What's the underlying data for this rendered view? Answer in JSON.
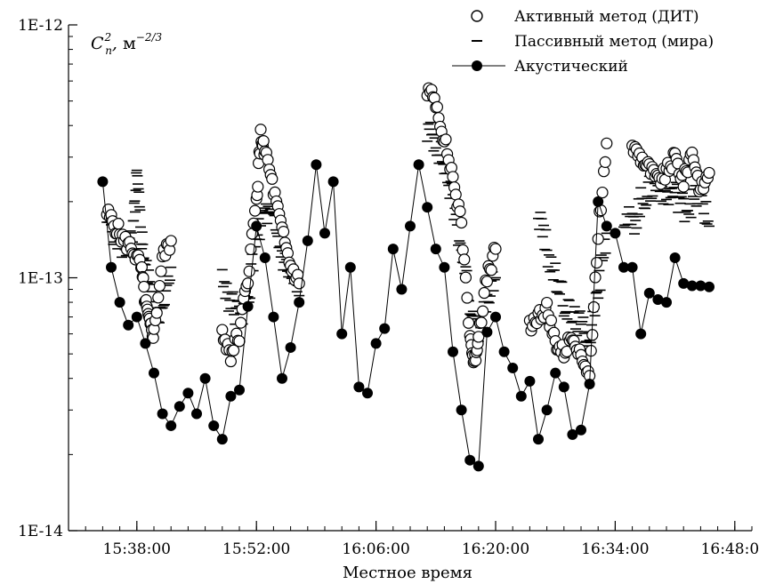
{
  "chart_data": {
    "type": "scatter",
    "title": "",
    "xlabel": "Местное время",
    "ylabel": "C_n^2, м^-2/3",
    "ylabel_parts": {
      "symbol": "C",
      "sub": "n",
      "sup": "2",
      "unit": "м",
      "unit_exp": "−2/3"
    },
    "yscale": "log",
    "ylim": [
      1e-14,
      1e-12
    ],
    "yticks": [
      "1E-12",
      "1E-13",
      "1E-14"
    ],
    "xlim": [
      "15:30:00",
      "16:50:00"
    ],
    "xticks": [
      "15:38:00",
      "15:52:00",
      "16:06:00",
      "16:20:00",
      "16:34:00",
      "16:48:00"
    ],
    "grid": false,
    "legend_position": "top-right",
    "series": [
      {
        "name": "Активный метод (ДИТ)",
        "marker": "open-circle",
        "color": "#000000",
        "segments": [
          {
            "x": [
              "15:34:30",
              "15:35:30",
              "15:36:30",
              "15:37:30",
              "15:38:30",
              "15:39:00",
              "15:39:30",
              "15:40:00",
              "15:41:00",
              "15:42:00"
            ],
            "y": [
              1.8e-13,
              1.6e-13,
              1.4e-13,
              1.3e-13,
              1.1e-13,
              8e-14,
              6.5e-14,
              6e-14,
              1.2e-13,
              1.4e-13
            ]
          },
          {
            "x": [
              "15:48:00",
              "15:49:00",
              "15:50:00",
              "15:51:00",
              "15:52:00",
              "15:52:30",
              "15:53:00",
              "15:54:00",
              "15:55:00",
              "15:56:00",
              "15:57:00"
            ],
            "y": [
              6e-14,
              5e-14,
              6e-14,
              1e-13,
              2e-13,
              3.6e-13,
              3.2e-13,
              2.2e-13,
              1.5e-13,
              1.1e-13,
              9.5e-14
            ]
          },
          {
            "x": [
              "16:12:00",
              "16:13:00",
              "16:14:00",
              "16:15:00",
              "16:16:00",
              "16:17:00",
              "16:17:30",
              "16:18:00",
              "16:19:00",
              "16:20:00"
            ],
            "y": [
              5.5e-13,
              5e-13,
              3.5e-13,
              2.5e-13,
              1.6e-13,
              6e-14,
              4.5e-14,
              6e-14,
              1e-13,
              1.3e-13
            ]
          },
          {
            "x": [
              "16:24:00",
              "16:25:00",
              "16:26:00",
              "16:27:00",
              "16:28:00",
              "16:29:00",
              "16:30:00",
              "16:31:00",
              "16:32:00",
              "16:33:00"
            ],
            "y": [
              6.5e-14,
              7e-14,
              7.5e-14,
              5.5e-14,
              5e-14,
              6e-14,
              5e-14,
              4e-14,
              1.5e-13,
              3.4e-13
            ]
          },
          {
            "x": [
              "16:36:00",
              "16:37:00",
              "16:38:00",
              "16:39:00",
              "16:40:00",
              "16:41:00",
              "16:42:00",
              "16:43:00",
              "16:44:00",
              "16:45:00"
            ],
            "y": [
              3.3e-13,
              3e-13,
              2.7e-13,
              2.4e-13,
              2.6e-13,
              3e-13,
              2.4e-13,
              3.2e-13,
              2.2e-13,
              2.6e-13
            ]
          }
        ]
      },
      {
        "name": "Пассивный метод (мира)",
        "marker": "dash",
        "color": "#000000",
        "segments": [
          {
            "x": [
              "15:34:30",
              "15:35:30",
              "15:36:30",
              "15:37:30",
              "15:38:00",
              "15:38:30",
              "15:39:00",
              "15:40:00",
              "15:41:00",
              "15:42:00"
            ],
            "y": [
              1.7e-13,
              1.5e-13,
              1.3e-13,
              1.4e-13,
              2.5e-13,
              1.5e-13,
              1.1e-13,
              8e-14,
              7e-14,
              1.1e-13
            ]
          },
          {
            "x": [
              "15:48:00",
              "15:49:00",
              "15:50:00",
              "15:51:00",
              "15:52:00",
              "15:53:00",
              "15:54:00",
              "15:55:00",
              "15:56:00",
              "15:57:00"
            ],
            "y": [
              1e-13,
              8e-14,
              7e-14,
              8e-14,
              1.5e-13,
              1.8e-13,
              1.6e-13,
              1.2e-13,
              1e-13,
              8.5e-14
            ]
          },
          {
            "x": [
              "16:12:00",
              "16:13:00",
              "16:14:00",
              "16:15:00",
              "16:16:00",
              "16:17:00",
              "16:18:00",
              "16:19:00",
              "16:20:00"
            ],
            "y": [
              3.8e-13,
              3.5e-13,
              2.8e-13,
              2e-13,
              1.3e-13,
              8e-14,
              6e-14,
              8e-14,
              1e-13
            ]
          },
          {
            "x": [
              "16:25:00",
              "16:26:00",
              "16:27:00",
              "16:28:00",
              "16:29:00",
              "16:30:00",
              "16:31:00",
              "16:32:00",
              "16:33:00"
            ],
            "y": [
              1.8e-13,
              1.3e-13,
              1e-13,
              8e-14,
              7e-14,
              6.5e-14,
              6e-14,
              9e-14,
              1.5e-13
            ]
          },
          {
            "x": [
              "16:35:00",
              "16:36:00",
              "16:37:00",
              "16:38:00",
              "16:39:00",
              "16:40:00",
              "16:41:00",
              "16:42:00",
              "16:43:00",
              "16:44:00",
              "16:45:00"
            ],
            "y": [
              1.8e-13,
              1.6e-13,
              2e-13,
              2.2e-13,
              2.4e-13,
              2.1e-13,
              2.2e-13,
              1.9e-13,
              2e-13,
              2.1e-13,
              1.6e-13
            ]
          }
        ]
      },
      {
        "name": "Акустический",
        "marker": "filled-circle-line",
        "color": "#000000",
        "x": [
          "15:34:00",
          "15:35:00",
          "15:36:00",
          "15:37:00",
          "15:38:00",
          "15:39:00",
          "15:40:00",
          "15:41:00",
          "15:42:00",
          "15:43:00",
          "15:44:00",
          "15:45:00",
          "15:46:00",
          "15:47:00",
          "15:48:00",
          "15:49:00",
          "15:50:00",
          "15:51:00",
          "15:52:00",
          "15:53:00",
          "15:54:00",
          "15:55:00",
          "15:56:00",
          "15:57:00",
          "15:58:00",
          "15:59:00",
          "16:00:00",
          "16:01:00",
          "16:02:00",
          "16:03:00",
          "16:04:00",
          "16:05:00",
          "16:06:00",
          "16:07:00",
          "16:08:00",
          "16:09:00",
          "16:10:00",
          "16:11:00",
          "16:12:00",
          "16:13:00",
          "16:14:00",
          "16:15:00",
          "16:16:00",
          "16:17:00",
          "16:18:00",
          "16:19:00",
          "16:20:00",
          "16:21:00",
          "16:22:00",
          "16:23:00",
          "16:24:00",
          "16:25:00",
          "16:26:00",
          "16:27:00",
          "16:28:00",
          "16:29:00",
          "16:30:00",
          "16:31:00",
          "16:32:00",
          "16:33:00",
          "16:34:00",
          "16:35:00",
          "16:36:00",
          "16:37:00",
          "16:38:00",
          "16:39:00",
          "16:40:00",
          "16:41:00",
          "16:42:00",
          "16:43:00",
          "16:44:00",
          "16:45:00"
        ],
        "y": [
          2.4e-13,
          1.1e-13,
          8e-14,
          6.5e-14,
          7e-14,
          5.5e-14,
          4.2e-14,
          2.9e-14,
          2.6e-14,
          3.1e-14,
          3.5e-14,
          2.9e-14,
          4e-14,
          2.6e-14,
          2.3e-14,
          3.4e-14,
          3.6e-14,
          7.7e-14,
          1.6e-13,
          1.2e-13,
          7e-14,
          4e-14,
          5.3e-14,
          8e-14,
          1.4e-13,
          2.8e-13,
          1.5e-13,
          2.4e-13,
          6e-14,
          1.1e-13,
          3.7e-14,
          3.5e-14,
          5.5e-14,
          6.3e-14,
          1.3e-13,
          9e-14,
          1.6e-13,
          2.8e-13,
          1.9e-13,
          1.3e-13,
          1.1e-13,
          5.1e-14,
          3e-14,
          1.9e-14,
          1.8e-14,
          6.1e-14,
          7e-14,
          5.1e-14,
          4.4e-14,
          3.4e-14,
          3.9e-14,
          2.3e-14,
          3e-14,
          4.2e-14,
          3.7e-14,
          2.4e-14,
          2.5e-14,
          3.8e-14,
          2e-13,
          1.6e-13,
          1.5e-13,
          1.1e-13,
          1.1e-13,
          6e-14,
          8.7e-14,
          8.2e-14,
          8e-14,
          1.2e-13,
          9.5e-14,
          9.3e-14,
          9.3e-14,
          9.2e-14
        ]
      }
    ]
  }
}
